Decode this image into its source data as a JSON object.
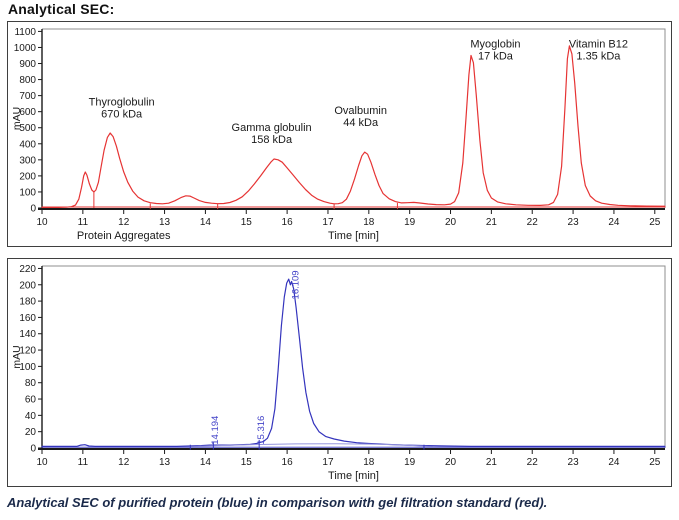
{
  "page": {
    "title": "Analytical SEC:",
    "caption": "Analytical SEC of purified protein (blue) in comparison with gel filtration standard (red)."
  },
  "colors": {
    "standard_trace": "#e63434",
    "sample_trace": "#3434bd",
    "sample_label": "#4444c8",
    "axis": "#1a1a1a",
    "frame": "#8f8f8f",
    "caption_text": "#1b2a4a"
  },
  "chart_data": [
    {
      "type": "line",
      "name": "gel-filtration-standard-chromatogram",
      "xlabel": "Time [min]",
      "ylabel": "mAU",
      "xlim": [
        10,
        25.25
      ],
      "ylim": [
        0,
        1115
      ],
      "xticks": [
        10,
        11,
        12,
        13,
        14,
        15,
        16,
        17,
        18,
        19,
        20,
        21,
        22,
        23,
        24,
        25
      ],
      "yticks": [
        0,
        100,
        200,
        300,
        400,
        500,
        600,
        700,
        800,
        900,
        1000,
        1100
      ],
      "grid": false,
      "legend": "none",
      "axis_color": "#1a1a1a",
      "marker_color": "#e63434",
      "series": [
        {
          "name": "standard-trace",
          "color": "#e63434",
          "width": 1.2,
          "points": [
            [
              10,
              4
            ],
            [
              10.4,
              4
            ],
            [
              10.6,
              5
            ],
            [
              10.72,
              8
            ],
            [
              10.82,
              18
            ],
            [
              10.9,
              55
            ],
            [
              10.97,
              130
            ],
            [
              11.02,
              200
            ],
            [
              11.06,
              224
            ],
            [
              11.1,
              205
            ],
            [
              11.16,
              150
            ],
            [
              11.22,
              112
            ],
            [
              11.27,
              100
            ],
            [
              11.32,
              112
            ],
            [
              11.38,
              160
            ],
            [
              11.45,
              260
            ],
            [
              11.52,
              360
            ],
            [
              11.6,
              440
            ],
            [
              11.67,
              467
            ],
            [
              11.74,
              445
            ],
            [
              11.82,
              385
            ],
            [
              11.9,
              310
            ],
            [
              12.0,
              225
            ],
            [
              12.1,
              160
            ],
            [
              12.22,
              105
            ],
            [
              12.35,
              68
            ],
            [
              12.5,
              45
            ],
            [
              12.65,
              33
            ],
            [
              12.8,
              28
            ],
            [
              12.95,
              26
            ],
            [
              13.1,
              30
            ],
            [
              13.25,
              45
            ],
            [
              13.4,
              65
            ],
            [
              13.52,
              76
            ],
            [
              13.62,
              74
            ],
            [
              13.72,
              62
            ],
            [
              13.85,
              46
            ],
            [
              14.0,
              35
            ],
            [
              14.15,
              30
            ],
            [
              14.3,
              27
            ],
            [
              14.45,
              28
            ],
            [
              14.6,
              34
            ],
            [
              14.75,
              48
            ],
            [
              14.9,
              70
            ],
            [
              15.05,
              105
            ],
            [
              15.2,
              150
            ],
            [
              15.35,
              200
            ],
            [
              15.5,
              252
            ],
            [
              15.6,
              285
            ],
            [
              15.68,
              305
            ],
            [
              15.78,
              300
            ],
            [
              15.88,
              285
            ],
            [
              16.0,
              250
            ],
            [
              16.15,
              205
            ],
            [
              16.3,
              158
            ],
            [
              16.45,
              115
            ],
            [
              16.6,
              80
            ],
            [
              16.75,
              55
            ],
            [
              16.9,
              40
            ],
            [
              17.05,
              30
            ],
            [
              17.15,
              26
            ],
            [
              17.25,
              27
            ],
            [
              17.35,
              33
            ],
            [
              17.45,
              55
            ],
            [
              17.55,
              105
            ],
            [
              17.65,
              180
            ],
            [
              17.75,
              265
            ],
            [
              17.83,
              325
            ],
            [
              17.9,
              348
            ],
            [
              17.97,
              335
            ],
            [
              18.05,
              285
            ],
            [
              18.15,
              210
            ],
            [
              18.25,
              140
            ],
            [
              18.35,
              90
            ],
            [
              18.5,
              57
            ],
            [
              18.65,
              40
            ],
            [
              18.8,
              32
            ],
            [
              18.95,
              33
            ],
            [
              19.1,
              35
            ],
            [
              19.25,
              31
            ],
            [
              19.45,
              25
            ],
            [
              19.65,
              21
            ],
            [
              19.85,
              20
            ],
            [
              20.0,
              24
            ],
            [
              20.1,
              40
            ],
            [
              20.2,
              95
            ],
            [
              20.3,
              280
            ],
            [
              20.38,
              560
            ],
            [
              20.45,
              830
            ],
            [
              20.5,
              950
            ],
            [
              20.56,
              905
            ],
            [
              20.63,
              700
            ],
            [
              20.72,
              420
            ],
            [
              20.8,
              220
            ],
            [
              20.9,
              110
            ],
            [
              21.0,
              62
            ],
            [
              21.15,
              38
            ],
            [
              21.35,
              26
            ],
            [
              21.6,
              20
            ],
            [
              21.9,
              17
            ],
            [
              22.2,
              16
            ],
            [
              22.4,
              20
            ],
            [
              22.52,
              35
            ],
            [
              22.62,
              85
            ],
            [
              22.72,
              260
            ],
            [
              22.8,
              620
            ],
            [
              22.86,
              930
            ],
            [
              22.91,
              1010
            ],
            [
              22.97,
              960
            ],
            [
              23.04,
              780
            ],
            [
              23.12,
              510
            ],
            [
              23.2,
              280
            ],
            [
              23.3,
              140
            ],
            [
              23.42,
              75
            ],
            [
              23.55,
              45
            ],
            [
              23.7,
              30
            ],
            [
              23.9,
              22
            ],
            [
              24.1,
              17
            ],
            [
              24.4,
              14
            ],
            [
              24.8,
              12
            ],
            [
              25.25,
              11
            ]
          ]
        },
        {
          "name": "standard-baseline",
          "color": "#e63434",
          "width": 0.9,
          "points": [
            [
              10,
              6
            ],
            [
              25.25,
              6
            ]
          ]
        }
      ],
      "markers": [
        {
          "t": 11.27,
          "v1": 0,
          "v2": 100
        },
        {
          "t": 12.65,
          "v1": -7,
          "v2": 28
        },
        {
          "t": 14.3,
          "v1": -7,
          "v2": 27
        },
        {
          "t": 17.15,
          "v1": -7,
          "v2": 27
        },
        {
          "t": 18.7,
          "v1": -7,
          "v2": 32
        }
      ],
      "annotations": [
        {
          "lines": [
            "Thyroglobulin",
            "670 kDa"
          ],
          "t": 11.95,
          "v": 640
        },
        {
          "lines": [
            "Gamma globulin",
            "158 kDa"
          ],
          "t": 15.62,
          "v": 480
        },
        {
          "lines": [
            "Ovalbumin",
            "44 kDa"
          ],
          "t": 17.8,
          "v": 585
        },
        {
          "lines": [
            "Myoglobin",
            "17 kDa"
          ],
          "t": 21.1,
          "v": 1000
        },
        {
          "lines": [
            "Vitamin B12",
            "1.35 kDa"
          ],
          "t": 23.62,
          "v": 1000
        }
      ],
      "extra_labels": [
        {
          "text": "Protein Aggregates",
          "t": 12.0
        }
      ]
    },
    {
      "type": "line",
      "name": "purified-protein-chromatogram",
      "xlabel": "Time [min]",
      "ylabel": "mAU",
      "xlim": [
        10,
        25.25
      ],
      "ylim": [
        0,
        223
      ],
      "xticks": [
        10,
        11,
        12,
        13,
        14,
        15,
        16,
        17,
        18,
        19,
        20,
        21,
        22,
        23,
        24,
        25
      ],
      "yticks": [
        0,
        20,
        40,
        60,
        80,
        100,
        120,
        140,
        160,
        180,
        200,
        220
      ],
      "grid": false,
      "legend": "none",
      "axis_color": "#1a1a1a",
      "marker_color": "#3434bd",
      "series": [
        {
          "name": "sample-trace",
          "color": "#3434bd",
          "width": 1.2,
          "points": [
            [
              10,
              2
            ],
            [
              10.5,
              2
            ],
            [
              10.85,
              2
            ],
            [
              10.95,
              3.5
            ],
            [
              11.05,
              4
            ],
            [
              11.15,
              2.5
            ],
            [
              11.3,
              2
            ],
            [
              12,
              2
            ],
            [
              12.7,
              2
            ],
            [
              13.3,
              2
            ],
            [
              13.6,
              2.5
            ],
            [
              13.9,
              3
            ],
            [
              14.1,
              3.5
            ],
            [
              14.19,
              3.5
            ],
            [
              14.35,
              3.5
            ],
            [
              14.6,
              3.5
            ],
            [
              14.85,
              4
            ],
            [
              15.1,
              4.5
            ],
            [
              15.25,
              5.5
            ],
            [
              15.32,
              6.5
            ],
            [
              15.42,
              8
            ],
            [
              15.52,
              12
            ],
            [
              15.62,
              24
            ],
            [
              15.7,
              48
            ],
            [
              15.78,
              95
            ],
            [
              15.86,
              150
            ],
            [
              15.93,
              185
            ],
            [
              15.99,
              202
            ],
            [
              16.04,
              207
            ],
            [
              16.08,
              200
            ],
            [
              16.11,
              204
            ],
            [
              16.16,
              195
            ],
            [
              16.22,
              172
            ],
            [
              16.3,
              135
            ],
            [
              16.38,
              98
            ],
            [
              16.46,
              68
            ],
            [
              16.55,
              45
            ],
            [
              16.65,
              30
            ],
            [
              16.78,
              20
            ],
            [
              16.95,
              14
            ],
            [
              17.15,
              11
            ],
            [
              17.4,
              8.5
            ],
            [
              17.7,
              6.5
            ],
            [
              18.0,
              5.5
            ],
            [
              18.4,
              4.5
            ],
            [
              18.9,
              3.5
            ],
            [
              19.4,
              3
            ],
            [
              19.9,
              2.5
            ],
            [
              20.5,
              2
            ],
            [
              21.5,
              2
            ],
            [
              22.5,
              2
            ],
            [
              23.5,
              2
            ],
            [
              24.5,
              2
            ],
            [
              25.25,
              2
            ]
          ]
        },
        {
          "name": "integration-baseline",
          "color": "#9595dd",
          "width": 1,
          "points": [
            [
              13.6,
              1.5
            ],
            [
              14.3,
              3
            ],
            [
              15.2,
              4.2
            ],
            [
              16.2,
              5
            ],
            [
              17.2,
              5.2
            ],
            [
              18.0,
              4.8
            ],
            [
              18.8,
              3.8
            ],
            [
              19.3,
              2.5
            ],
            [
              19.55,
              1.5
            ]
          ]
        },
        {
          "name": "sample-baseline",
          "color": "#3434bd",
          "width": 0.9,
          "points": [
            [
              10,
              1
            ],
            [
              25.25,
              1
            ]
          ]
        }
      ],
      "markers": [
        {
          "t": 14.194,
          "v1": -2,
          "v2": 7
        },
        {
          "t": 15.316,
          "v1": -2,
          "v2": 10
        },
        {
          "t": 13.63,
          "v1": -2,
          "v2": 4
        },
        {
          "t": 19.35,
          "v1": -2,
          "v2": 4
        }
      ],
      "annotations": [
        {
          "text": "16.109",
          "t": 16.28,
          "v": 182,
          "rotate": true,
          "color": "#4444c8"
        },
        {
          "text": "15.316",
          "t": 15.44,
          "v": 4,
          "rotate": true,
          "color": "#4444c8"
        },
        {
          "text": "14.194",
          "t": 14.31,
          "v": 4,
          "rotate": true,
          "color": "#4444c8"
        }
      ],
      "extra_labels": []
    }
  ]
}
